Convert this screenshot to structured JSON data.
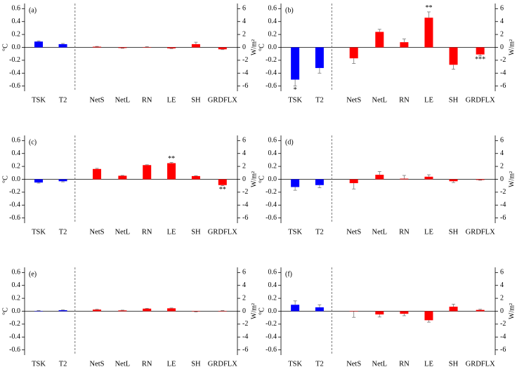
{
  "chart_data": [
    {
      "type": "bar",
      "title": "(a)",
      "ylabel": "°C",
      "y2label": "W/m²",
      "categories": [
        "TSK",
        "T2",
        "NetS",
        "NetL",
        "RN",
        "LE",
        "SH",
        "GRDFLX"
      ],
      "series": [
        {
          "color": "#0000ff",
          "axis": "y",
          "values": [
            0.09,
            0.05,
            null,
            null,
            null,
            null,
            null,
            null
          ],
          "errors": [
            0.01,
            0.01,
            null,
            null,
            null,
            null,
            null,
            null
          ]
        },
        {
          "color": "#ff0000",
          "axis": "y2",
          "values": [
            null,
            null,
            0.1,
            -0.1,
            0.05,
            -0.15,
            0.5,
            -0.3
          ],
          "errors": [
            null,
            null,
            0.05,
            0.05,
            0.05,
            0.05,
            0.3,
            0.05
          ]
        }
      ],
      "significance": [
        null,
        null,
        null,
        null,
        null,
        null,
        null,
        null
      ],
      "ylim": [
        -0.68,
        0.68
      ],
      "yticks": [
        -0.6,
        -0.4,
        -0.2,
        {
          "value": 0,
          "label": "0.0"
        },
        0.2,
        0.4,
        0.6
      ],
      "y2lim": [
        -6.8,
        6.8
      ],
      "y2ticks": [
        -6,
        -4,
        -2,
        0,
        2,
        4,
        6
      ]
    },
    {
      "type": "bar",
      "title": "(b)",
      "ylabel": "°C",
      "y2label": "W/m²",
      "categories": [
        "TSK",
        "T2",
        "NetS",
        "NetL",
        "RN",
        "LE",
        "SH",
        "GRDFLX"
      ],
      "series": [
        {
          "color": "#0000ff",
          "axis": "y",
          "values": [
            -0.5,
            -0.32,
            null,
            null,
            null,
            null,
            null,
            null
          ],
          "errors": [
            0.1,
            0.08,
            null,
            null,
            null,
            null,
            null,
            null
          ]
        },
        {
          "color": "#ff0000",
          "axis": "y2",
          "values": [
            null,
            null,
            -1.7,
            2.4,
            0.8,
            4.6,
            -2.7,
            -1.1
          ],
          "errors": [
            null,
            null,
            0.8,
            0.4,
            0.5,
            0.9,
            0.7,
            0.2
          ]
        }
      ],
      "significance": [
        "*",
        null,
        null,
        null,
        null,
        "**",
        null,
        "***"
      ],
      "ylim": [
        -0.68,
        0.68
      ],
      "yticks": [
        -0.6,
        -0.4,
        -0.2,
        {
          "value": 0,
          "label": "0.0"
        },
        0.2,
        0.4,
        0.6
      ],
      "y2lim": [
        -6.8,
        6.8
      ],
      "y2ticks": [
        -6,
        -4,
        -2,
        0,
        2,
        4,
        6
      ]
    },
    {
      "type": "bar",
      "title": "(c)",
      "ylabel": "°C",
      "y2label": "W/m²",
      "categories": [
        "TSK",
        "T2",
        "NetS",
        "NetL",
        "RN",
        "LE",
        "SH",
        "GRDFLX"
      ],
      "series": [
        {
          "color": "#0000ff",
          "axis": "y",
          "values": [
            -0.05,
            -0.03,
            null,
            null,
            null,
            null,
            null,
            null
          ],
          "errors": [
            0.01,
            0.01,
            null,
            null,
            null,
            null,
            null,
            null
          ]
        },
        {
          "color": "#ff0000",
          "axis": "y2",
          "values": [
            null,
            null,
            1.6,
            0.55,
            2.2,
            2.5,
            0.5,
            -0.9
          ],
          "errors": [
            null,
            null,
            0.1,
            0.05,
            0.05,
            0.1,
            0.05,
            0.1
          ]
        }
      ],
      "significance": [
        null,
        null,
        null,
        null,
        null,
        "**",
        null,
        "**"
      ],
      "ylim": [
        -0.68,
        0.68
      ],
      "yticks": [
        -0.6,
        -0.4,
        -0.2,
        {
          "value": 0,
          "label": "0.0"
        },
        0.2,
        0.4,
        0.6
      ],
      "y2lim": [
        -6.8,
        6.8
      ],
      "y2ticks": [
        -6,
        -4,
        -2,
        0,
        2,
        4,
        6
      ]
    },
    {
      "type": "bar",
      "title": "(d)",
      "ylabel": "°C",
      "y2label": "W/m²",
      "categories": [
        "TSK",
        "T2",
        "NetS",
        "NetL",
        "RN",
        "LE",
        "SH",
        "GRDFLX"
      ],
      "series": [
        {
          "color": "#0000ff",
          "axis": "y",
          "values": [
            -0.12,
            -0.09,
            null,
            null,
            null,
            null,
            null,
            null
          ],
          "errors": [
            0.05,
            0.04,
            null,
            null,
            null,
            null,
            null,
            null
          ]
        },
        {
          "color": "#ff0000",
          "axis": "y2",
          "values": [
            null,
            null,
            -0.6,
            0.7,
            0.1,
            0.4,
            -0.3,
            -0.1
          ],
          "errors": [
            null,
            null,
            0.9,
            0.5,
            0.5,
            0.3,
            0.2,
            0.05
          ]
        }
      ],
      "significance": [
        null,
        null,
        null,
        null,
        null,
        null,
        null,
        null
      ],
      "ylim": [
        -0.68,
        0.68
      ],
      "yticks": [
        -0.6,
        -0.4,
        -0.2,
        {
          "value": 0,
          "label": "0.0"
        },
        0.2,
        0.4,
        0.6
      ],
      "y2lim": [
        -6.8,
        6.8
      ],
      "y2ticks": [
        -6,
        -4,
        -2,
        0,
        2,
        4,
        6
      ]
    },
    {
      "type": "bar",
      "title": "(e)",
      "ylabel": "°C",
      "y2label": "W/m²",
      "categories": [
        "TSK",
        "T2",
        "NetS",
        "NetL",
        "RN",
        "LE",
        "SH",
        "GRDFLX"
      ],
      "series": [
        {
          "color": "#0000ff",
          "axis": "y",
          "values": [
            0.005,
            0.015,
            null,
            null,
            null,
            null,
            null,
            null
          ],
          "errors": [
            0.005,
            0.005,
            null,
            null,
            null,
            null,
            null,
            null
          ]
        },
        {
          "color": "#ff0000",
          "axis": "y2",
          "values": [
            null,
            null,
            0.25,
            0.12,
            0.4,
            0.45,
            -0.05,
            0.05
          ],
          "errors": [
            null,
            null,
            0.05,
            0.05,
            0.05,
            0.05,
            0.05,
            0.05
          ]
        }
      ],
      "significance": [
        null,
        null,
        null,
        null,
        null,
        null,
        null,
        null
      ],
      "ylim": [
        -0.68,
        0.68
      ],
      "yticks": [
        -0.6,
        -0.4,
        -0.2,
        {
          "value": 0,
          "label": "0.0"
        },
        0.2,
        0.4,
        0.6
      ],
      "y2lim": [
        -6.8,
        6.8
      ],
      "y2ticks": [
        -6,
        -4,
        -2,
        0,
        2,
        4,
        6
      ]
    },
    {
      "type": "bar",
      "title": "(f)",
      "ylabel": "°C",
      "y2label": "W/m²",
      "categories": [
        "TSK",
        "T2",
        "NetS",
        "NetL",
        "RN",
        "LE",
        "SH",
        "GRDFLX"
      ],
      "series": [
        {
          "color": "#0000ff",
          "axis": "y",
          "values": [
            0.1,
            0.06,
            null,
            null,
            null,
            null,
            null,
            null
          ],
          "errors": [
            0.06,
            0.04,
            null,
            null,
            null,
            null,
            null,
            null
          ]
        },
        {
          "color": "#ff0000",
          "axis": "y2",
          "values": [
            null,
            null,
            -0.05,
            -0.5,
            -0.4,
            -1.4,
            0.7,
            0.2
          ],
          "errors": [
            null,
            null,
            0.9,
            0.4,
            0.3,
            0.3,
            0.4,
            0.1
          ]
        }
      ],
      "significance": [
        null,
        null,
        null,
        null,
        null,
        null,
        null,
        null
      ],
      "ylim": [
        -0.68,
        0.68
      ],
      "yticks": [
        -0.6,
        -0.4,
        -0.2,
        {
          "value": 0,
          "label": "0.0"
        },
        0.2,
        0.4,
        0.6
      ],
      "y2lim": [
        -6.8,
        6.8
      ],
      "y2ticks": [
        -6,
        -4,
        -2,
        0,
        2,
        4,
        6
      ]
    }
  ]
}
